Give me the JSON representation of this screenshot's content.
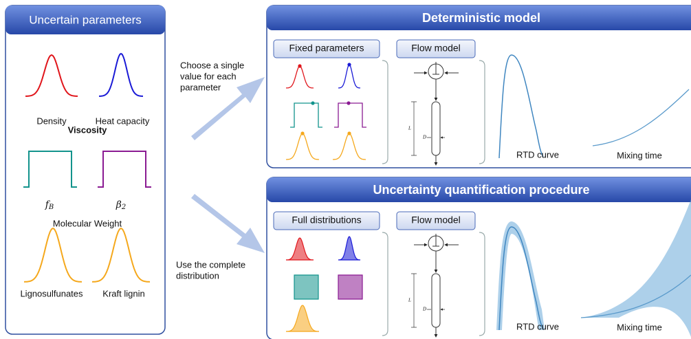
{
  "left": {
    "title": "Uncertain parameters",
    "density": "Density",
    "heat_capacity": "Heat capacity",
    "viscosity": "Viscosity",
    "f_symbol": "f",
    "f_sub": "B",
    "beta_symbol": "β",
    "beta_sub": "2",
    "molecular_weight": "Molecular Weight",
    "lignosulfunates": "Lignosulfunates",
    "kraft": "Kraft lignin"
  },
  "arrows": {
    "top": [
      "Choose a single",
      "value for each",
      "parameter"
    ],
    "bottom": [
      "Use the complete",
      "distribution"
    ]
  },
  "deterministic": {
    "title": "Deterministic model",
    "params": "Fixed parameters",
    "flow": "Flow model",
    "length": "L",
    "diameter": "D",
    "rtd": "RTD curve",
    "mixing": "Mixing time"
  },
  "uq": {
    "title": "Uncertainty quantification procedure",
    "params": "Full distributions",
    "flow": "Flow model",
    "length": "L",
    "diameter": "D",
    "rtd": "RTD curve",
    "mixing": "Mixing time"
  }
}
